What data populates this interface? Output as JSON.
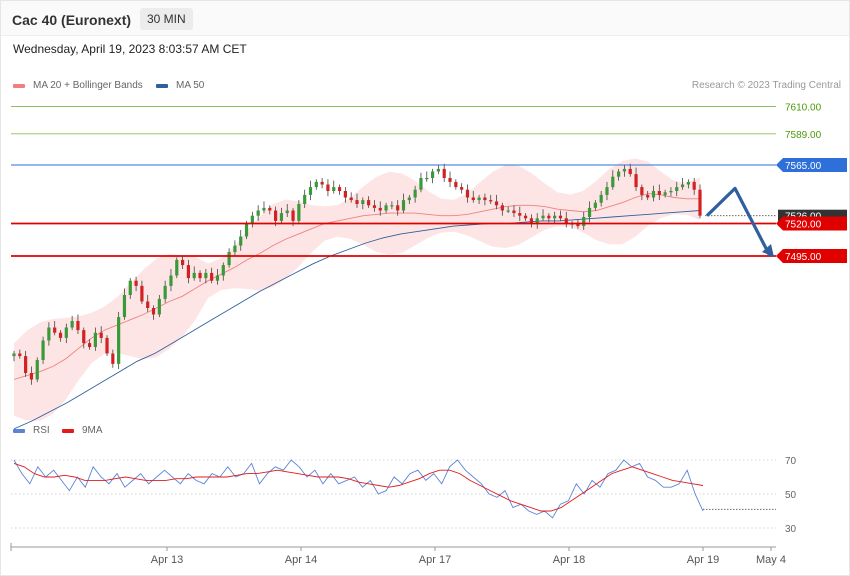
{
  "header": {
    "title": "Cac 40 (Euronext)",
    "timeframe": "30 MIN"
  },
  "datetime": "Wednesday, April 19, 2023 8:03:57 AM CET",
  "legend_main": [
    {
      "label": "MA 20 + Bollinger Bands",
      "color": "#f08080"
    },
    {
      "label": "MA 50",
      "color": "#2f5f9e"
    }
  ],
  "legend_rsi": [
    {
      "label": "RSI",
      "color": "#5b84d6"
    },
    {
      "label": "9MA",
      "color": "#e31b1b"
    }
  ],
  "credit": "Research © 2023 Trading Central",
  "levels": [
    {
      "value": "7610.00",
      "kind": "target",
      "color": "#8fbf5f",
      "text_color": "#4e9a06"
    },
    {
      "value": "7589.00",
      "kind": "target",
      "color": "#8fbf5f",
      "text_color": "#4e9a06"
    },
    {
      "value": "7565.00",
      "kind": "pivot",
      "color": "#2e6fd9",
      "text_color": "#ffffff"
    },
    {
      "value": "7526.00",
      "kind": "last",
      "color": "#333333",
      "text_color": "#ffffff"
    },
    {
      "value": "7520.00",
      "kind": "support",
      "color": "#e00000",
      "text_color": "#ffffff"
    },
    {
      "value": "7495.00",
      "kind": "support",
      "color": "#e00000",
      "text_color": "#ffffff"
    }
  ],
  "rsi_levels": [
    "70",
    "50",
    "30"
  ],
  "x_labels": [
    "Apr 13",
    "Apr 14",
    "Apr 17",
    "Apr 18",
    "Apr 19",
    "May 4"
  ],
  "colors": {
    "up": "#3a9a3a",
    "down": "#d42020",
    "band": "#fde0e0"
  },
  "chart_data": {
    "type": "candlestick",
    "title": "Cac 40 (Euronext)",
    "timeframe": "30 MIN",
    "y_range": [
      7360,
      7620
    ],
    "key_levels": [
      7610,
      7589,
      7565,
      7526,
      7520,
      7495
    ],
    "last_price": 7526,
    "series": [
      {
        "name": "Close",
        "values": [
          7420,
          7418,
          7405,
          7400,
          7415,
          7430,
          7440,
          7436,
          7432,
          7440,
          7445,
          7438,
          7428,
          7425,
          7436,
          7432,
          7420,
          7412,
          7448,
          7465,
          7476,
          7472,
          7460,
          7455,
          7450,
          7462,
          7472,
          7480,
          7492,
          7488,
          7478,
          7482,
          7478,
          7482,
          7476,
          7480,
          7488,
          7498,
          7503,
          7510,
          7520,
          7526,
          7530,
          7532,
          7530,
          7522,
          7528,
          7530,
          7522,
          7535,
          7542,
          7548,
          7552,
          7550,
          7545,
          7548,
          7545,
          7540,
          7538,
          7535,
          7538,
          7534,
          7532,
          7530,
          7534,
          7534,
          7530,
          7538,
          7540,
          7546,
          7555,
          7555,
          7560,
          7562,
          7555,
          7552,
          7548,
          7546,
          7540,
          7538,
          7540,
          7538,
          7537,
          7534,
          7530,
          7530,
          7528,
          7526,
          7524,
          7520,
          7524,
          7526,
          7524,
          7526,
          7524,
          7520,
          7520,
          7518,
          7525,
          7532,
          7536,
          7542,
          7548,
          7556,
          7560,
          7562,
          7558,
          7548,
          7542,
          7540,
          7545,
          7542,
          7544,
          7545,
          7548,
          7550,
          7552,
          7546,
          7526
        ]
      },
      {
        "name": "MA 20",
        "values": [
          7400,
          7403,
          7406,
          7410,
          7416,
          7424,
          7432,
          7438,
          7442,
          7446,
          7450,
          7455,
          7460,
          7464,
          7470,
          7476,
          7481,
          7486,
          7492,
          7497,
          7503,
          7508,
          7512,
          7516,
          7520,
          7522,
          7524,
          7526,
          7527,
          7528,
          7528,
          7528,
          7527,
          7526,
          7526,
          7527,
          7529,
          7531,
          7533,
          7534,
          7534,
          7533,
          7531,
          7530,
          7529,
          7530,
          7533,
          7536,
          7540,
          7543,
          7542,
          7540,
          7539,
          7539
        ]
      },
      {
        "name": "MA 50",
        "values": [
          7362,
          7368,
          7375,
          7382,
          7390,
          7398,
          7406,
          7414,
          7420,
          7428,
          7436,
          7444,
          7452,
          7460,
          7468,
          7475,
          7482,
          7489,
          7495,
          7500,
          7505,
          7509,
          7512,
          7514,
          7516,
          7518,
          7519,
          7520,
          7520,
          7521,
          7522,
          7522,
          7523,
          7524,
          7525,
          7526,
          7527,
          7528,
          7529,
          7530
        ]
      },
      {
        "name": "RSI",
        "values": [
          70,
          62,
          56,
          66,
          60,
          64,
          58,
          52,
          60,
          54,
          66,
          60,
          56,
          62,
          54,
          58,
          62,
          56,
          60,
          64,
          60,
          56,
          62,
          58,
          56,
          62,
          60,
          66,
          60,
          62,
          68,
          56,
          62,
          66,
          64,
          70,
          66,
          60,
          64,
          56,
          62,
          56,
          58,
          60,
          54,
          58,
          50,
          52,
          60,
          56,
          62,
          64,
          58,
          62,
          56,
          66,
          70,
          64,
          60,
          56,
          50,
          48,
          52,
          42,
          44,
          40,
          38,
          40,
          36,
          44,
          46,
          56,
          50,
          58,
          54,
          62,
          64,
          70,
          66,
          68,
          60,
          58,
          54,
          54,
          56,
          64,
          50,
          40
        ]
      },
      {
        "name": "9MA",
        "values": [
          68,
          66,
          62,
          60,
          60,
          61,
          60,
          58,
          58,
          58,
          59,
          60,
          59,
          58,
          58,
          58,
          59,
          59,
          60,
          60,
          60,
          60,
          61,
          62,
          62,
          63,
          64,
          63,
          62,
          61,
          60,
          60,
          60,
          59,
          57,
          56,
          55,
          54,
          55,
          57,
          59,
          62,
          64,
          64,
          62,
          58,
          55,
          52,
          49,
          46,
          44,
          42,
          40,
          40,
          42,
          46,
          50,
          54,
          58,
          62,
          64,
          66,
          64,
          62,
          60,
          58,
          57,
          56,
          55
        ]
      }
    ],
    "x_ticks": [
      "Apr 13",
      "Apr 14",
      "Apr 17",
      "Apr 18",
      "Apr 19",
      "May 4"
    ],
    "rsi_ticks": [
      70,
      50,
      30
    ],
    "forecast": {
      "path": [
        7526,
        7547,
        7495
      ],
      "direction": "down"
    }
  }
}
